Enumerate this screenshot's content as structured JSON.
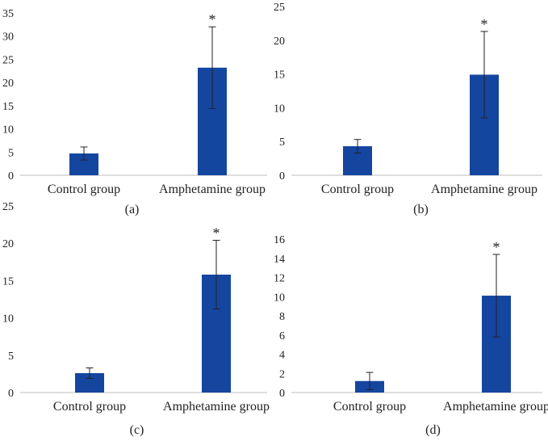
{
  "chart_data": [
    {
      "type": "bar",
      "panel_label": "(a)",
      "categories": [
        "Control group",
        "Amphetamine group"
      ],
      "values": [
        4.7,
        23.2
      ],
      "error": [
        1.4,
        8.8
      ],
      "significance": [
        "",
        "*"
      ],
      "ylim": [
        0,
        35
      ],
      "yticks": [
        0,
        5,
        10,
        15,
        20,
        25,
        30,
        35
      ],
      "bar_color": "#1446a0"
    },
    {
      "type": "bar",
      "panel_label": "(b)",
      "categories": [
        "Control group",
        "Amphetamine group"
      ],
      "values": [
        4.3,
        14.9
      ],
      "error": [
        1.0,
        6.4
      ],
      "significance": [
        "",
        "*"
      ],
      "ylim": [
        0,
        25
      ],
      "yticks": [
        0,
        5,
        10,
        15,
        20,
        25
      ],
      "bar_color": "#1446a0"
    },
    {
      "type": "bar",
      "panel_label": "(c)",
      "categories": [
        "Control group",
        "Amphetamine group"
      ],
      "values": [
        2.6,
        15.8
      ],
      "error": [
        0.7,
        4.6
      ],
      "significance": [
        "",
        "*"
      ],
      "ylim": [
        0,
        25
      ],
      "yticks": [
        0,
        5,
        10,
        15,
        20,
        25
      ],
      "bar_color": "#1446a0"
    },
    {
      "type": "bar",
      "panel_label": "(d)",
      "categories": [
        "Control group",
        "Amphetamine group"
      ],
      "values": [
        1.2,
        10.1
      ],
      "error": [
        0.9,
        4.3
      ],
      "significance": [
        "",
        "*"
      ],
      "ylim": [
        0,
        16
      ],
      "yticks": [
        0,
        2,
        4,
        6,
        8,
        10,
        12,
        14,
        16
      ],
      "bar_color": "#1446a0"
    }
  ]
}
